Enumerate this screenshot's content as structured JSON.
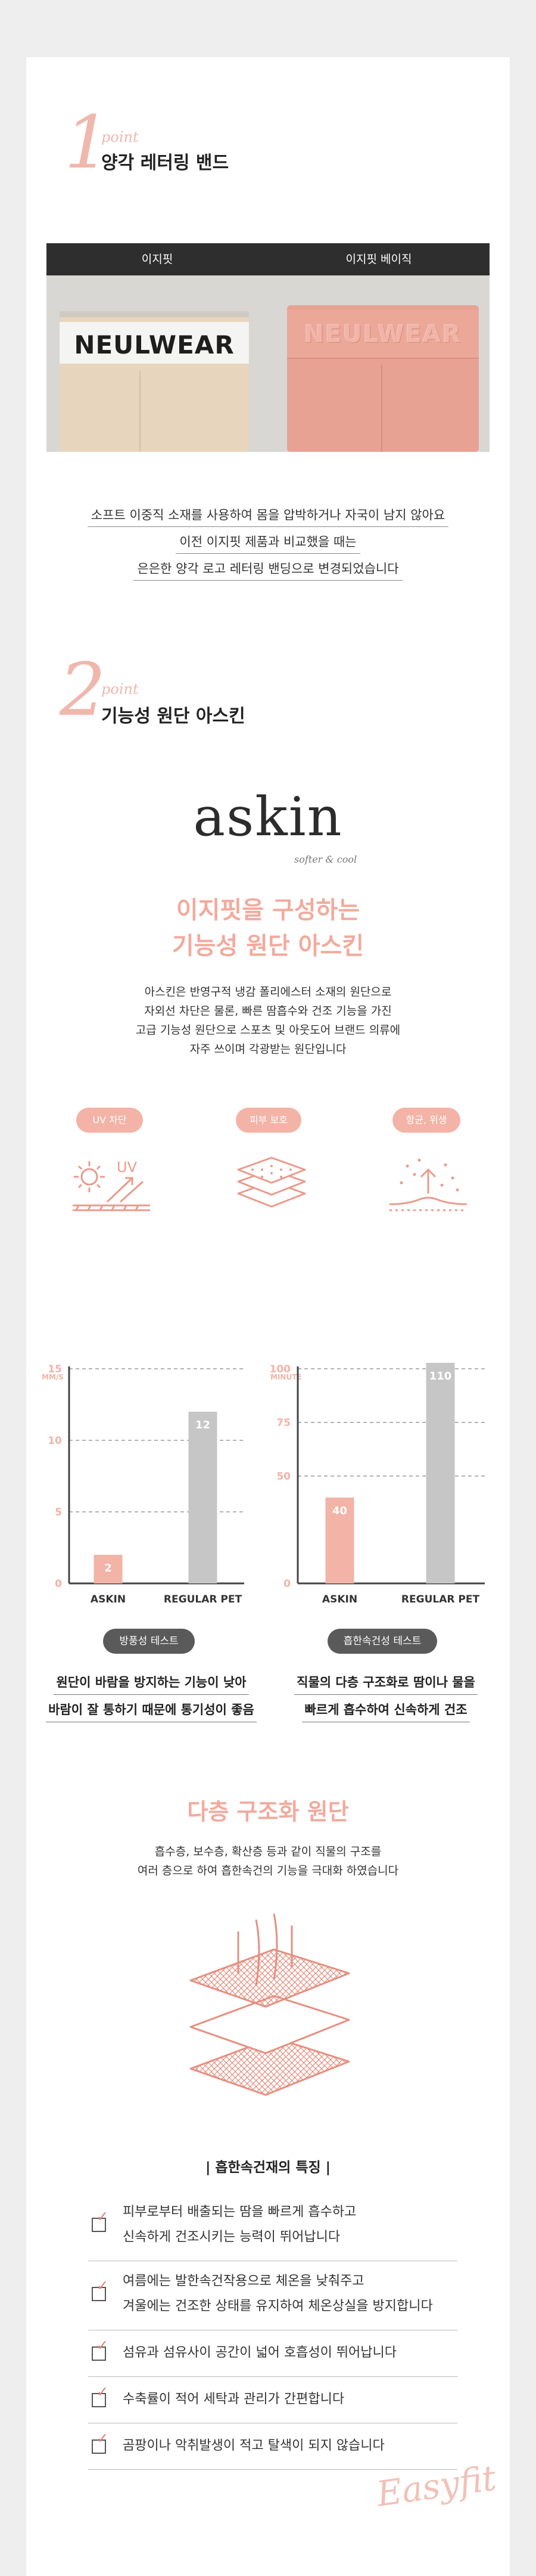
{
  "point1": {
    "number": "1",
    "word": "point",
    "title": "양각 레터링 밴드"
  },
  "compare": {
    "left_label": "이지핏",
    "right_label": "이지핏 베이직",
    "left_band_text": "NEULWEAR",
    "right_band_text": "NEULWEAR"
  },
  "point1_desc": [
    "소프트 이중직 소재를 사용하여 몸을 압박하거나 자국이 남지 않아요",
    "이전 이지핏 제품과 비교했을 때는",
    "은은한 양각 로고 레터링 밴딩으로 변경되었습니다"
  ],
  "point2": {
    "number": "2",
    "word": "point",
    "title": "기능성 원단 아스킨"
  },
  "askin": {
    "logo": "askin",
    "tagline": "softer & cool",
    "heading_line1": "이지핏을 구성하는",
    "heading_line2": "기능성 원단 아스킨",
    "desc": [
      "아스킨은 반영구적 냉감 폴리에스터 소재의 원단으로",
      "자외선 차단은 물론, 빠른 땀흡수와 건조 기능을 가진",
      "고급 기능성 원단으로 스포츠 및 아웃도어 브랜드 의류에",
      "자주 쓰이며 각광받는 원단입니다"
    ]
  },
  "features_icons": [
    {
      "label": "UV 차단",
      "icon": "uv-shield-icon"
    },
    {
      "label": "피부 보호",
      "icon": "layered-fabric-icon"
    },
    {
      "label": "항균, 위생",
      "icon": "antibacterial-icon"
    }
  ],
  "uv_icon_text": "UV",
  "colors": {
    "accent_pink": "#f3b3a7",
    "bar_gray": "#c6c6c6",
    "pill_dark": "#5a5a5a"
  },
  "chart_data": [
    {
      "type": "bar",
      "ylabel": "MM/S",
      "categories": [
        "ASKIN",
        "REGULAR PET"
      ],
      "values": [
        2,
        12
      ],
      "value_labels": [
        "2",
        "12"
      ],
      "ylim": [
        0,
        15
      ],
      "yticks": [
        "0",
        "5",
        "10",
        "15"
      ],
      "grid": true,
      "test_label": "방풍성 테스트",
      "caption": [
        "원단이 바람을 방지하는 기능이 낮아",
        "바람이 잘 통하기 때문에 통기성이 좋음"
      ]
    },
    {
      "type": "bar",
      "ylabel": "MINUTE",
      "categories": [
        "ASKIN",
        "REGULAR PET"
      ],
      "values": [
        40,
        110
      ],
      "value_labels": [
        "40",
        "110"
      ],
      "ylim": [
        0,
        100
      ],
      "yticks": [
        "0",
        "50",
        "75",
        "100"
      ],
      "grid": true,
      "test_label": "흡한속건성 테스트",
      "caption": [
        "직물의 다층 구조화로 땀이나 물을",
        "빠르게 흡수하여 신속하게 건조"
      ]
    }
  ],
  "multilayer": {
    "heading": "다층 구조화 원단",
    "desc": [
      "흡수층, 보수층, 확산층 등과 같이 직물의 구조를",
      "여러 층으로 하여 흡한속건의 기능을 극대화 하였습니다"
    ]
  },
  "features_list": {
    "title": "| 흡한속건재의 특징 |",
    "items": [
      [
        "피부로부터 배출되는 땀을 빠르게 흡수하고",
        "신속하게 건조시키는 능력이 뛰어납니다"
      ],
      [
        "여름에는 발한속건작용으로 체온을 낮춰주고",
        "겨울에는 건조한 상태를 유지하여 체온상실을 방지합니다"
      ],
      [
        "섬유과 섬유사이 공간이 넓어 호흡성이 뛰어납니다"
      ],
      [
        "수축률이 적어 세탁과 관리가 간편합니다"
      ],
      [
        "곰팡이나 악취발생이 적고 탈색이 되지 않습니다"
      ]
    ]
  },
  "signature": "Easyfit"
}
